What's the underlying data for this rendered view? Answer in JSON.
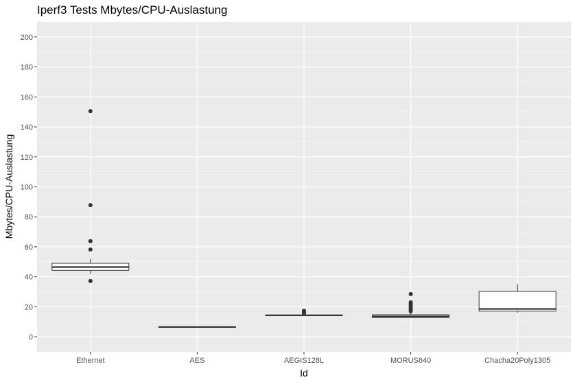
{
  "chart_data": {
    "type": "box",
    "title": "Iperf3 Tests Mbytes/CPU-Auslastung",
    "xlabel": "Id",
    "ylabel": "Mbytes/CPU-Auslastung",
    "ylim": [
      -10,
      210
    ],
    "yticks": [
      0,
      20,
      40,
      60,
      80,
      100,
      120,
      140,
      160,
      180,
      200
    ],
    "grid": true,
    "categories": [
      "Ethernet",
      "AES",
      "AEGIS128L",
      "MORUS640",
      "Chacha20Poly1305"
    ],
    "boxes": [
      {
        "category": "Ethernet",
        "lower_whisker": 42,
        "q1": 44.3,
        "median": 46.5,
        "q3": 49,
        "upper_whisker": 52,
        "outliers": [
          150.5,
          87.8,
          63.8,
          58.2,
          37.2
        ]
      },
      {
        "category": "AES",
        "lower_whisker": 6.2,
        "q1": 6.3,
        "median": 6.5,
        "q3": 6.7,
        "upper_whisker": 6.8,
        "outliers": []
      },
      {
        "category": "AEGIS128L",
        "lower_whisker": 13.8,
        "q1": 14.1,
        "median": 14.3,
        "q3": 14.5,
        "upper_whisker": 14.9,
        "outliers": [
          15.8,
          16.4,
          17.0,
          17.4
        ]
      },
      {
        "category": "MORUS640",
        "lower_whisker": 12.6,
        "q1": 12.9,
        "median": 13.6,
        "q3": 14.7,
        "upper_whisker": 16.2,
        "outliers": [
          17.0,
          18.0,
          19.0,
          20.0,
          21.0,
          22.0,
          23.0,
          28.5
        ]
      },
      {
        "category": "Chacha20Poly1305",
        "lower_whisker": 16.2,
        "q1": 17.1,
        "median": 18.6,
        "q3": 30.3,
        "upper_whisker": 35,
        "outliers": []
      }
    ]
  }
}
